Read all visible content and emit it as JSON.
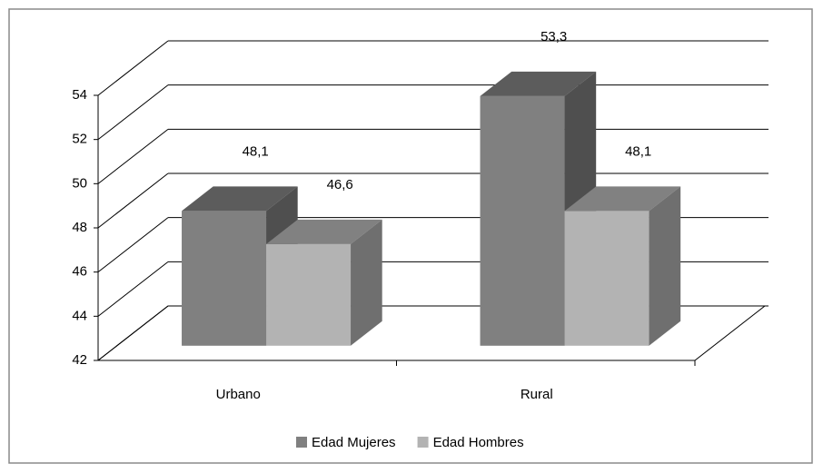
{
  "chart_data": {
    "type": "bar3d",
    "categories": [
      "Urbano",
      "Rural"
    ],
    "series": [
      {
        "name": "Edad Mujeres",
        "color": "#808080",
        "values": [
          48.1,
          53.3
        ],
        "value_labels": [
          "48,1",
          "53,3"
        ]
      },
      {
        "name": "Edad Hombres",
        "color": "#b3b3b3",
        "values": [
          46.6,
          48.1
        ],
        "value_labels": [
          "46,6",
          "48,1"
        ]
      }
    ],
    "ylim": [
      42,
      54
    ],
    "yticks": [
      42,
      44,
      46,
      48,
      50,
      52,
      54
    ],
    "grid": true,
    "legend": "bottom"
  }
}
